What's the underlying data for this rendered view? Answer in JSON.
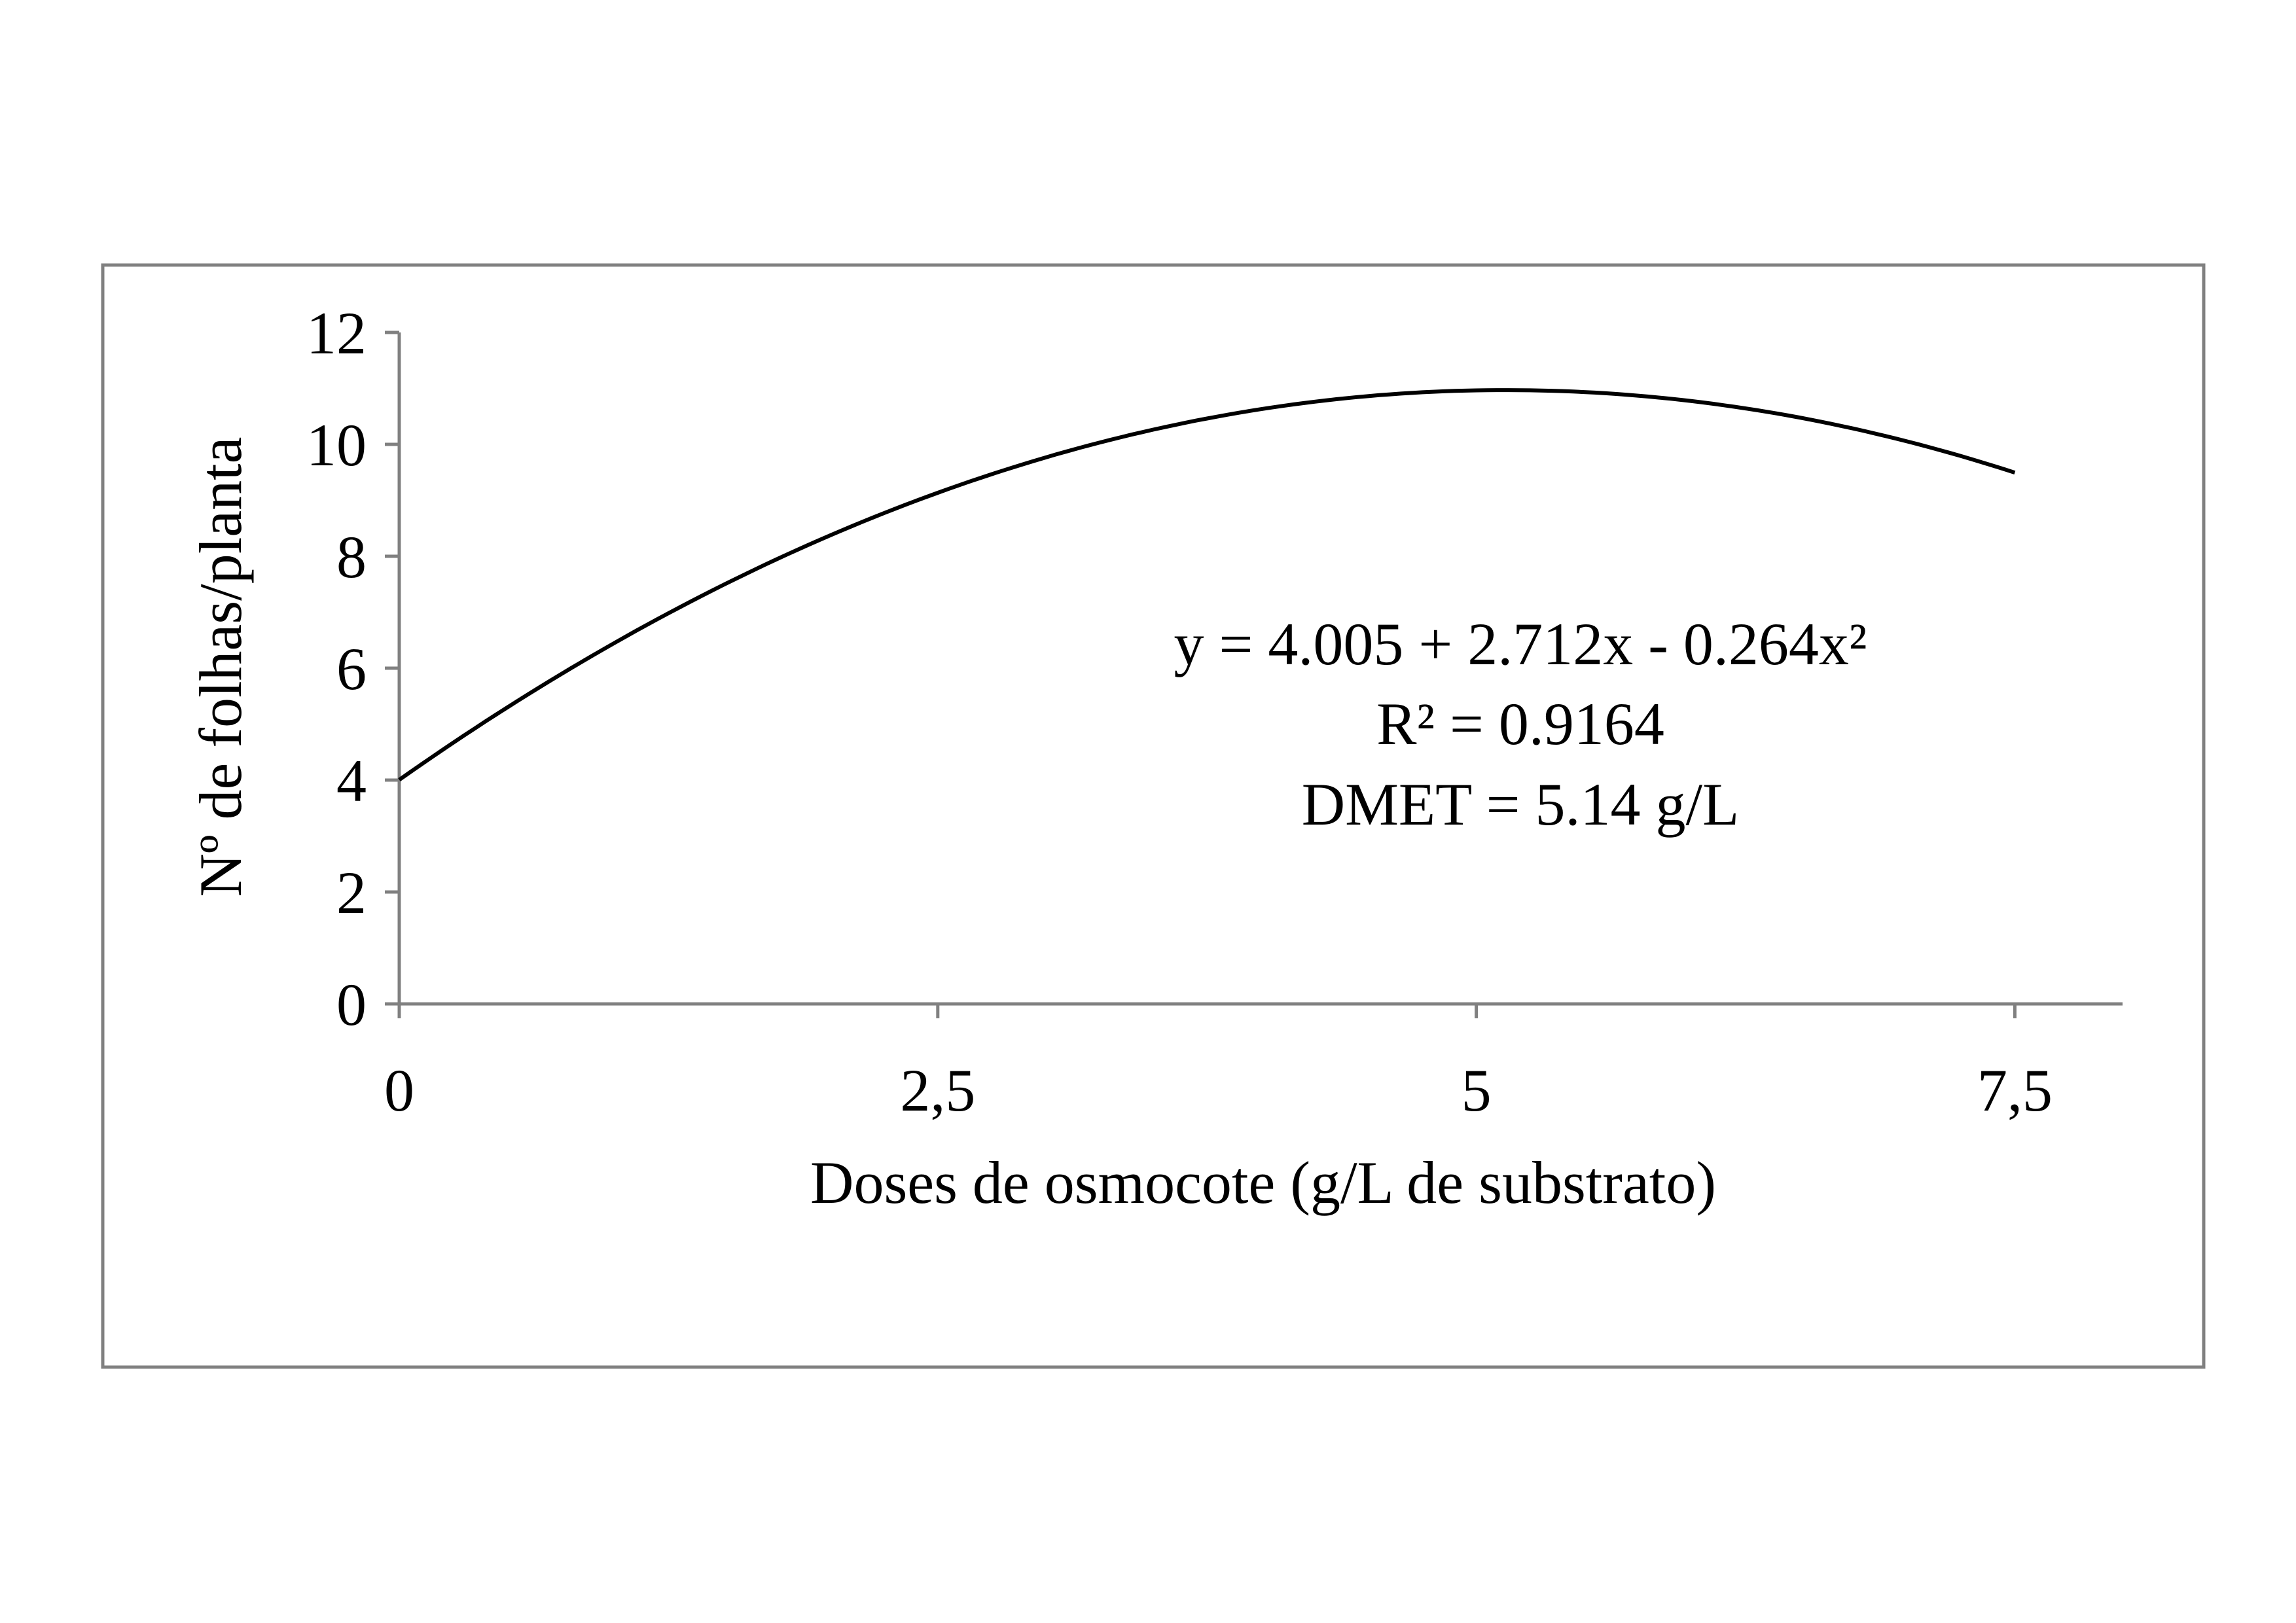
{
  "chart_data": {
    "type": "line",
    "title": "",
    "xlabel": "Doses de osmocote (g/L de substrato)",
    "ylabel": "Nº de folhas/planta",
    "xlim": [
      0,
      8
    ],
    "ylim": [
      0,
      12
    ],
    "x_ticks": [
      0,
      2.5,
      5,
      7.5
    ],
    "x_tick_labels": [
      "0",
      "2,5",
      "5",
      "7,5"
    ],
    "y_ticks": [
      0,
      2,
      4,
      6,
      8,
      10,
      12
    ],
    "y_tick_labels": [
      "0",
      "2",
      "4",
      "6",
      "8",
      "10",
      "12"
    ],
    "grid": false,
    "series": [
      {
        "fit": "quadratic",
        "coefficients": {
          "a": 4.005,
          "b": 2.712,
          "c": -0.264
        },
        "x_range": [
          0,
          7.5
        ],
        "color": "#000000"
      }
    ],
    "annotations": [
      "y = 4.005 + 2.712x - 0.264x²",
      "R² = 0.9164",
      "DMET = 5.14 g/L"
    ],
    "axis_color": "#808080",
    "frame_color": "#808080"
  }
}
